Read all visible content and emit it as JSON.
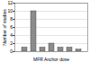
{
  "chart_data": {
    "type": "bar",
    "categories": [
      null,
      null,
      null,
      null,
      null,
      null,
      null
    ],
    "values": [
      1,
      10,
      1,
      2,
      1,
      1,
      0.5
    ],
    "color": "#8c8c8c",
    "x_label": "MFR Anchor dose",
    "y_label": "Number of studies",
    "ylim": [
      0,
      12
    ],
    "yticks": [
      0,
      2,
      4,
      6,
      8,
      10,
      12
    ],
    "grid": true
  }
}
